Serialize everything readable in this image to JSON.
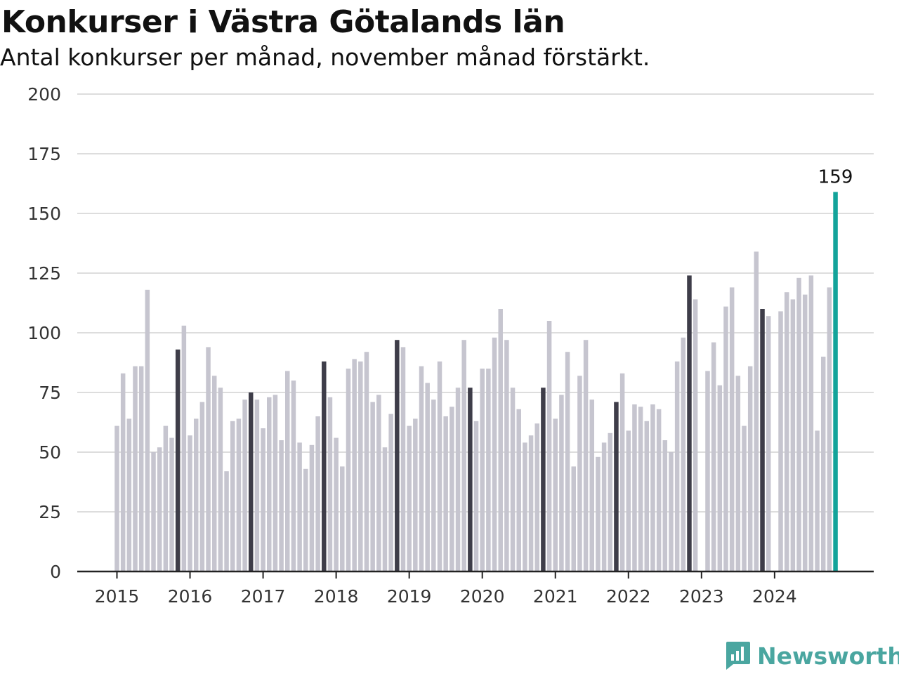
{
  "header": {
    "title": "Konkurser i Västra Götalands län",
    "subtitle": "Antal konkurser per månad, november månad förstärkt."
  },
  "brand": {
    "name": "Newsworthy",
    "icon": "bar-chart-icon"
  },
  "colors": {
    "bar_default": "#c6c5cf",
    "bar_november": "#3e3d49",
    "bar_latest": "#13a39a",
    "grid": "#dddddd",
    "axis": "#222222",
    "brand": "#4aa6a0"
  },
  "chart_data": {
    "type": "bar",
    "ylim": [
      0,
      200
    ],
    "yticks": [
      0,
      25,
      50,
      75,
      100,
      125,
      150,
      175,
      200
    ],
    "xtick_labels": [
      "2015",
      "2016",
      "2017",
      "2018",
      "2019",
      "2020",
      "2021",
      "2022",
      "2023",
      "2024"
    ],
    "start": "2015-01",
    "end": "2024-11",
    "highlight_month": "november",
    "latest_label": "159",
    "grid": true,
    "values": [
      61,
      83,
      64,
      86,
      86,
      118,
      50,
      52,
      61,
      56,
      93,
      103,
      57,
      64,
      71,
      94,
      82,
      77,
      42,
      63,
      64,
      72,
      75,
      72,
      60,
      73,
      74,
      55,
      84,
      80,
      54,
      43,
      53,
      65,
      88,
      73,
      56,
      44,
      85,
      89,
      88,
      92,
      71,
      74,
      52,
      66,
      97,
      94,
      61,
      64,
      86,
      79,
      72,
      88,
      65,
      69,
      77,
      97,
      77,
      63,
      85,
      85,
      98,
      110,
      97,
      77,
      68,
      54,
      57,
      62,
      77,
      105,
      64,
      74,
      92,
      44,
      82,
      97,
      72,
      48,
      54,
      58,
      71,
      83,
      59,
      70,
      69,
      63,
      70,
      68,
      55,
      50,
      88,
      98,
      124,
      114,
      0,
      84,
      96,
      78,
      111,
      119,
      82,
      61,
      86,
      134,
      110,
      107,
      0,
      109,
      117,
      114,
      123,
      116,
      124,
      59,
      90,
      119,
      159
    ]
  }
}
